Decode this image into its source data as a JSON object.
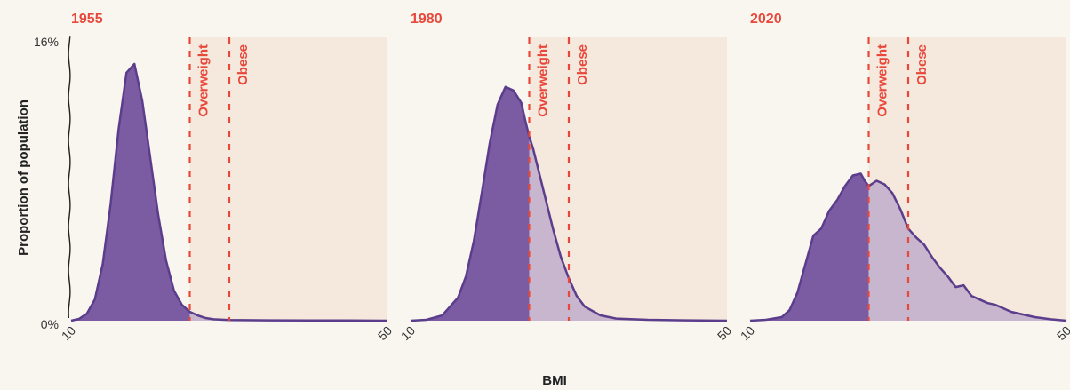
{
  "chart_data": {
    "type": "area",
    "xlabel": "BMI",
    "ylabel": "Proportion of population",
    "y_ticks": [
      "0%",
      "16%"
    ],
    "y_max": 16,
    "thresholds": {
      "overweight": 25,
      "obese": 30
    },
    "threshold_labels": {
      "overweight": "Overweight",
      "obese": "Obese"
    },
    "colors": {
      "accent_red": "#e8483b",
      "zone_fill": "#f5e8dc",
      "curve_dark": "#7b5ca3",
      "curve_light": "#c4b3cc",
      "curve_line": "#5b3d8c"
    },
    "panels": [
      {
        "title": "1955",
        "x_ticks": [
          "10",
          "50"
        ],
        "xlim": [
          10,
          50
        ],
        "x": [
          10,
          11,
          12,
          13,
          14,
          15,
          16,
          17,
          18,
          19,
          20,
          21,
          22,
          23,
          24,
          25,
          26,
          27,
          28,
          30,
          35,
          40,
          45,
          50
        ],
        "y": [
          0,
          0.1,
          0.4,
          1.2,
          3.2,
          6.6,
          10.8,
          14.0,
          14.5,
          12.4,
          9.2,
          6.0,
          3.4,
          1.7,
          0.9,
          0.5,
          0.3,
          0.15,
          0.08,
          0.04,
          0.02,
          0.01,
          0.01,
          0
        ]
      },
      {
        "title": "1980",
        "x_ticks": [
          "10",
          "50"
        ],
        "xlim": [
          10,
          50
        ],
        "x": [
          10,
          12,
          14,
          16,
          17,
          18,
          19,
          20,
          21,
          22,
          23,
          24,
          24.5,
          25,
          25.5,
          26,
          27,
          28,
          29,
          30,
          31,
          32,
          34,
          36,
          40,
          45,
          50
        ],
        "y": [
          0,
          0.05,
          0.3,
          1.3,
          2.5,
          4.5,
          7.2,
          10.0,
          12.2,
          13.2,
          13.0,
          12.3,
          11.3,
          10.4,
          9.7,
          8.8,
          7.0,
          5.2,
          3.6,
          2.4,
          1.4,
          0.8,
          0.3,
          0.12,
          0.05,
          0.02,
          0
        ]
      },
      {
        "title": "2020",
        "x_ticks": [
          "10",
          "50"
        ],
        "xlim": [
          10,
          50
        ],
        "x": [
          10,
          12,
          14,
          15,
          16,
          17,
          18,
          19,
          20,
          21,
          22,
          23,
          24,
          24.5,
          25,
          26,
          27,
          28,
          29,
          30,
          31,
          32,
          33,
          34,
          35,
          36,
          37,
          38,
          39,
          40,
          41,
          42,
          43,
          44,
          46,
          48,
          50
        ],
        "y": [
          0,
          0.05,
          0.2,
          0.6,
          1.6,
          3.2,
          4.8,
          5.2,
          6.2,
          6.8,
          7.6,
          8.2,
          8.3,
          7.9,
          7.6,
          7.9,
          7.7,
          7.2,
          6.3,
          5.2,
          4.7,
          4.3,
          3.6,
          3.0,
          2.5,
          1.9,
          2.0,
          1.4,
          1.2,
          1.0,
          0.9,
          0.7,
          0.5,
          0.4,
          0.2,
          0.08,
          0
        ]
      }
    ]
  }
}
